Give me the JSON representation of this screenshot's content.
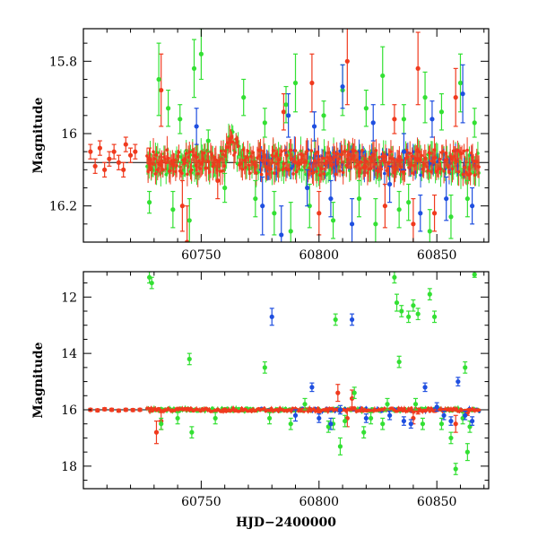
{
  "chart_data": [
    {
      "type": "scatter",
      "ylabel": "Magnitude",
      "xlabel": "",
      "xlim": [
        60700,
        60872
      ],
      "ylim": [
        16.3,
        15.71
      ],
      "y_inverted": true,
      "x_ticks": [
        60750,
        60800,
        60850
      ],
      "x_tick_labels": [
        "60750",
        "60800",
        "60850"
      ],
      "y_ticks": [
        15.8,
        16.0,
        16.2
      ],
      "y_tick_labels": [
        "15.8",
        "16",
        "16.2"
      ],
      "reference_line_y": 16.08,
      "grid": false,
      "series_colors": {
        "green": "#33e033",
        "blue": "#1f4fe0",
        "red": "#f03a1e"
      },
      "series": [
        {
          "color_key": "red",
          "points": [
            [
              60703,
              16.05,
              0.02
            ],
            [
              60705,
              16.09,
              0.02
            ],
            [
              60707,
              16.04,
              0.02
            ],
            [
              60709,
              16.1,
              0.02
            ],
            [
              60711,
              16.07,
              0.02
            ],
            [
              60713,
              16.05,
              0.02
            ],
            [
              60715,
              16.08,
              0.02
            ],
            [
              60717,
              16.1,
              0.02
            ],
            [
              60718,
              16.03,
              0.02
            ],
            [
              60720,
              16.06,
              0.02
            ],
            [
              60722,
              16.05,
              0.02
            ],
            [
              60728,
              16.07,
              0.03
            ],
            [
              60733,
              15.88,
              0.1
            ],
            [
              60742,
              16.2,
              0.07
            ],
            [
              60744,
              16.3,
              0.1
            ],
            [
              60757,
              16.13,
              0.05
            ],
            [
              60785,
              15.94,
              0.05
            ],
            [
              60797,
              15.86,
              0.08
            ],
            [
              60800,
              16.22,
              0.06
            ],
            [
              60812,
              15.8,
              0.12
            ],
            [
              60828,
              16.2,
              0.06
            ],
            [
              60832,
              15.96,
              0.04
            ],
            [
              60840,
              16.25,
              0.07
            ],
            [
              60842,
              15.82,
              0.1
            ],
            [
              60849,
              16.22,
              0.05
            ],
            [
              60858,
              15.9,
              0.08
            ]
          ]
        },
        {
          "color_key": "green",
          "points": [
            [
              60728,
              16.19,
              0.03
            ],
            [
              60732,
              15.85,
              0.1
            ],
            [
              60736,
              15.93,
              0.05
            ],
            [
              60738,
              16.21,
              0.05
            ],
            [
              60741,
              15.96,
              0.04
            ],
            [
              60745,
              16.24,
              0.06
            ],
            [
              60747,
              15.82,
              0.08
            ],
            [
              60750,
              15.78,
              0.07
            ],
            [
              60753,
              16.02,
              0.03
            ],
            [
              60760,
              16.15,
              0.04
            ],
            [
              60768,
              15.9,
              0.05
            ],
            [
              60773,
              16.18,
              0.05
            ],
            [
              60777,
              15.97,
              0.04
            ],
            [
              60781,
              16.22,
              0.06
            ],
            [
              60786,
              15.92,
              0.05
            ],
            [
              60788,
              16.27,
              0.08
            ],
            [
              60790,
              15.86,
              0.08
            ],
            [
              60796,
              16.2,
              0.06
            ],
            [
              60802,
              15.95,
              0.04
            ],
            [
              60806,
              16.24,
              0.05
            ],
            [
              60810,
              15.88,
              0.07
            ],
            [
              60817,
              16.18,
              0.05
            ],
            [
              60820,
              15.93,
              0.05
            ],
            [
              60824,
              16.25,
              0.07
            ],
            [
              60827,
              15.84,
              0.08
            ],
            [
              60834,
              16.21,
              0.05
            ],
            [
              60836,
              15.96,
              0.04
            ],
            [
              60838,
              16.19,
              0.05
            ],
            [
              60845,
              15.9,
              0.07
            ],
            [
              60847,
              16.27,
              0.06
            ],
            [
              60852,
              15.94,
              0.05
            ],
            [
              60856,
              16.23,
              0.06
            ],
            [
              60860,
              15.86,
              0.08
            ],
            [
              60863,
              16.18,
              0.05
            ],
            [
              60866,
              15.97,
              0.04
            ]
          ]
        },
        {
          "color_key": "blue",
          "points": [
            [
              60748,
              15.98,
              0.05
            ],
            [
              60776,
              16.2,
              0.08
            ],
            [
              60784,
              16.28,
              0.08
            ],
            [
              60787,
              15.95,
              0.06
            ],
            [
              60795,
              16.15,
              0.05
            ],
            [
              60798,
              15.98,
              0.04
            ],
            [
              60805,
              16.18,
              0.05
            ],
            [
              60810,
              15.87,
              0.06
            ],
            [
              60814,
              16.25,
              0.07
            ],
            [
              60823,
              15.97,
              0.05
            ],
            [
              60830,
              16.14,
              0.05
            ],
            [
              60836,
              16.05,
              0.05
            ],
            [
              60843,
              16.22,
              0.05
            ],
            [
              60848,
              15.96,
              0.05
            ],
            [
              60854,
              16.18,
              0.06
            ],
            [
              60861,
              15.89,
              0.08
            ],
            [
              60865,
              16.2,
              0.05
            ]
          ]
        }
      ]
    },
    {
      "type": "scatter",
      "ylabel": "Magnitude",
      "xlabel": "HJD−2400000",
      "xlim": [
        60700,
        60872
      ],
      "ylim": [
        18.8,
        11.1
      ],
      "y_inverted": true,
      "x_ticks": [
        60750,
        60800,
        60850
      ],
      "x_tick_labels": [
        "60750",
        "60800",
        "60850"
      ],
      "y_ticks": [
        12,
        14,
        16,
        18
      ],
      "y_tick_labels": [
        "12",
        "14",
        "16",
        "18"
      ],
      "reference_line_y": 16.0,
      "grid": false,
      "series_colors": {
        "green": "#33e033",
        "blue": "#1f4fe0",
        "red": "#f03a1e"
      },
      "series": [
        {
          "color_key": "red",
          "points": [
            [
              60703,
              16.0,
              0.05
            ],
            [
              60706,
              16.02,
              0.05
            ],
            [
              60709,
              15.98,
              0.05
            ],
            [
              60712,
              16.0,
              0.05
            ],
            [
              60715,
              16.03,
              0.05
            ],
            [
              60718,
              16.0,
              0.05
            ],
            [
              60721,
              16.01,
              0.05
            ],
            [
              60724,
              16.0,
              0.05
            ],
            [
              60731,
              16.8,
              0.4
            ],
            [
              60733,
              16.4,
              0.3
            ],
            [
              60760,
              16.0,
              0.05
            ],
            [
              60800,
              16.05,
              0.05
            ],
            [
              60808,
              15.4,
              0.3
            ],
            [
              60812,
              16.3,
              0.3
            ],
            [
              60814,
              15.6,
              0.3
            ],
            [
              60840,
              16.3,
              0.2
            ],
            [
              60842,
              16.05,
              0.1
            ],
            [
              60850,
              16.0,
              0.05
            ],
            [
              60858,
              16.5,
              0.3
            ],
            [
              60863,
              16.1,
              0.1
            ]
          ]
        },
        {
          "color_key": "green",
          "points": [
            [
              60728,
              11.3,
              0.2
            ],
            [
              60729,
              11.5,
              0.2
            ],
            [
              60733,
              16.5,
              0.2
            ],
            [
              60740,
              16.3,
              0.2
            ],
            [
              60745,
              14.2,
              0.2
            ],
            [
              60746,
              16.8,
              0.2
            ],
            [
              60756,
              16.3,
              0.2
            ],
            [
              60777,
              14.5,
              0.2
            ],
            [
              60779,
              16.3,
              0.2
            ],
            [
              60788,
              16.5,
              0.2
            ],
            [
              60794,
              15.8,
              0.2
            ],
            [
              60804,
              16.6,
              0.2
            ],
            [
              60806,
              16.5,
              0.2
            ],
            [
              60807,
              12.8,
              0.2
            ],
            [
              60809,
              17.3,
              0.3
            ],
            [
              60811,
              16.4,
              0.2
            ],
            [
              60815,
              15.4,
              0.2
            ],
            [
              60819,
              16.8,
              0.2
            ],
            [
              60822,
              16.3,
              0.2
            ],
            [
              60827,
              16.5,
              0.2
            ],
            [
              60829,
              15.8,
              0.2
            ],
            [
              60832,
              11.3,
              0.2
            ],
            [
              60833,
              12.2,
              0.3
            ],
            [
              60834,
              14.3,
              0.2
            ],
            [
              60835,
              12.5,
              0.2
            ],
            [
              60838,
              12.7,
              0.2
            ],
            [
              60840,
              12.3,
              0.2
            ],
            [
              60841,
              15.8,
              0.2
            ],
            [
              60842,
              12.6,
              0.2
            ],
            [
              60844,
              16.5,
              0.2
            ],
            [
              60847,
              11.9,
              0.2
            ],
            [
              60849,
              12.7,
              0.2
            ],
            [
              60852,
              16.5,
              0.2
            ],
            [
              60856,
              17.0,
              0.2
            ],
            [
              60858,
              18.1,
              0.2
            ],
            [
              60861,
              16.3,
              0.2
            ],
            [
              60862,
              14.5,
              0.2
            ],
            [
              60863,
              17.5,
              0.3
            ],
            [
              60864,
              16.6,
              0.2
            ],
            [
              60866,
              11.2,
              0.1
            ]
          ]
        },
        {
          "color_key": "blue",
          "points": [
            [
              60780,
              12.7,
              0.3
            ],
            [
              60790,
              16.2,
              0.2
            ],
            [
              60797,
              15.2,
              0.15
            ],
            [
              60800,
              16.3,
              0.15
            ],
            [
              60805,
              16.5,
              0.2
            ],
            [
              60809,
              16.0,
              0.15
            ],
            [
              60814,
              12.8,
              0.2
            ],
            [
              60820,
              16.3,
              0.15
            ],
            [
              60830,
              16.2,
              0.15
            ],
            [
              60836,
              16.4,
              0.15
            ],
            [
              60839,
              16.5,
              0.15
            ],
            [
              60845,
              15.2,
              0.15
            ],
            [
              60850,
              15.9,
              0.15
            ],
            [
              60853,
              16.2,
              0.15
            ],
            [
              60856,
              16.4,
              0.15
            ],
            [
              60859,
              15.0,
              0.15
            ],
            [
              60862,
              16.2,
              0.15
            ],
            [
              60865,
              16.4,
              0.15
            ]
          ]
        }
      ]
    }
  ]
}
